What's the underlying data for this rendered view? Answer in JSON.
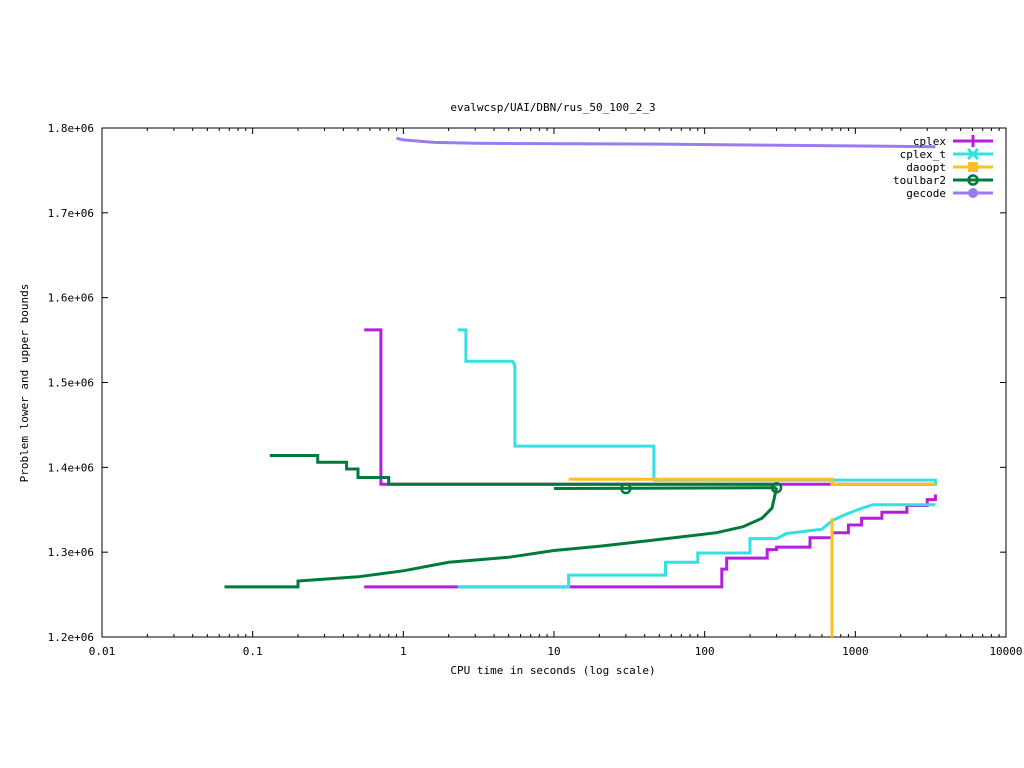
{
  "chart_data": {
    "type": "line",
    "title": "evalwcsp/UAI/DBN/rus_50_100_2_3",
    "xlabel": "CPU time in seconds (log scale)",
    "ylabel": "Problem lower and upper bounds",
    "xscale": "log",
    "xlim": [
      0.01,
      10000
    ],
    "ylim": [
      1200000,
      1800000
    ],
    "xticks": [
      {
        "value": 0.01,
        "label": "0.01"
      },
      {
        "value": 0.1,
        "label": "0.1"
      },
      {
        "value": 1,
        "label": "1"
      },
      {
        "value": 10,
        "label": "10"
      },
      {
        "value": 100,
        "label": "100"
      },
      {
        "value": 1000,
        "label": "1000"
      },
      {
        "value": 10000,
        "label": "10000"
      }
    ],
    "yticks": [
      {
        "value": 1200000,
        "label": "1.2e+06"
      },
      {
        "value": 1300000,
        "label": "1.3e+06"
      },
      {
        "value": 1400000,
        "label": "1.4e+06"
      },
      {
        "value": 1500000,
        "label": "1.5e+06"
      },
      {
        "value": 1600000,
        "label": "1.6e+06"
      },
      {
        "value": 1700000,
        "label": "1.7e+06"
      },
      {
        "value": 1800000,
        "label": "1.8e+06"
      }
    ],
    "legend_position": "top-right",
    "grid": false,
    "series": [
      {
        "name": "cplex",
        "color": "#b51fd9",
        "marker": "plus",
        "lines": [
          [
            [
              0.55,
              1562000
            ],
            [
              0.71,
              1562000
            ],
            [
              0.71,
              1380000
            ],
            [
              1.0,
              1380000
            ],
            [
              1.0,
              1380000
            ],
            [
              3400,
              1380000
            ]
          ],
          [
            [
              0.55,
              1259000
            ],
            [
              130,
              1259000
            ],
            [
              130,
              1280000
            ],
            [
              140,
              1280000
            ],
            [
              140,
              1293000
            ],
            [
              260,
              1293000
            ],
            [
              260,
              1303000
            ],
            [
              300,
              1303000
            ],
            [
              300,
              1306000
            ],
            [
              500,
              1306000
            ],
            [
              500,
              1317000
            ],
            [
              700,
              1317000
            ],
            [
              700,
              1323000
            ],
            [
              900,
              1323000
            ],
            [
              900,
              1332000
            ],
            [
              1100,
              1332000
            ],
            [
              1100,
              1340000
            ],
            [
              1500,
              1340000
            ],
            [
              1500,
              1347000
            ],
            [
              2200,
              1347000
            ],
            [
              2200,
              1355000
            ],
            [
              3000,
              1355000
            ],
            [
              3000,
              1362000
            ],
            [
              3400,
              1362000
            ],
            [
              3400,
              1368000
            ]
          ]
        ]
      },
      {
        "name": "cplex_t",
        "color": "#35e0e0",
        "marker": "cross",
        "lines": [
          [
            [
              2.3,
              1562000
            ],
            [
              2.6,
              1562000
            ],
            [
              2.6,
              1525000
            ],
            [
              5.3,
              1525000
            ],
            [
              5.5,
              1520000
            ],
            [
              5.5,
              1425000
            ],
            [
              46,
              1425000
            ],
            [
              46,
              1385000
            ],
            [
              3400,
              1385000
            ],
            [
              3400,
              1378000
            ]
          ],
          [
            [
              2.3,
              1259000
            ],
            [
              12.5,
              1259000
            ],
            [
              12.5,
              1273000
            ],
            [
              55,
              1273000
            ],
            [
              55,
              1288000
            ],
            [
              90,
              1288000
            ],
            [
              90,
              1299000
            ],
            [
              200,
              1299000
            ],
            [
              200,
              1316000
            ],
            [
              300,
              1316000
            ],
            [
              350,
              1322000
            ],
            [
              600,
              1327000
            ],
            [
              700,
              1337000
            ],
            [
              800,
              1342000
            ],
            [
              1000,
              1349000
            ],
            [
              1300,
              1356000
            ],
            [
              3400,
              1356000
            ]
          ]
        ]
      },
      {
        "name": "daoopt",
        "color": "#ffc020",
        "marker": "square",
        "lines": [
          [
            [
              12.5,
              1386000
            ],
            [
              700,
              1386000
            ],
            [
              700,
              1380000
            ],
            [
              3400,
              1380000
            ]
          ],
          [
            [
              700,
              1200000
            ],
            [
              700,
              1340000
            ]
          ]
        ]
      },
      {
        "name": "toulbar2",
        "color": "#007a3c",
        "marker": "circle",
        "points": [
          [
            30,
            1375000
          ],
          [
            300,
            1376000
          ]
        ],
        "lines": [
          [
            [
              0.13,
              1414000
            ],
            [
              0.27,
              1414000
            ],
            [
              0.27,
              1406000
            ],
            [
              0.42,
              1406000
            ],
            [
              0.42,
              1398000
            ],
            [
              0.5,
              1398000
            ],
            [
              0.5,
              1388000
            ],
            [
              0.8,
              1388000
            ],
            [
              0.8,
              1380000
            ],
            [
              300,
              1380000
            ]
          ],
          [
            [
              0.065,
              1259000
            ],
            [
              0.2,
              1259000
            ],
            [
              0.2,
              1266000
            ],
            [
              0.5,
              1271000
            ],
            [
              1.0,
              1278000
            ],
            [
              2,
              1288000
            ],
            [
              5,
              1294000
            ],
            [
              10,
              1302000
            ],
            [
              20,
              1307000
            ],
            [
              40,
              1313000
            ],
            [
              70,
              1318000
            ],
            [
              120,
              1323000
            ],
            [
              180,
              1330000
            ],
            [
              240,
              1340000
            ],
            [
              280,
              1352000
            ],
            [
              300,
              1376000
            ],
            [
              300,
              1376000
            ]
          ],
          [
            [
              10,
              1375000
            ],
            [
              300,
              1376000
            ]
          ]
        ]
      },
      {
        "name": "gecode",
        "color": "#9b7cf0",
        "marker": "circle",
        "lines": [
          [
            [
              0.9,
              1788000
            ],
            [
              1.0,
              1786000
            ],
            [
              1.6,
              1783000
            ],
            [
              3,
              1782000
            ],
            [
              50,
              1781000
            ],
            [
              3400,
              1778000
            ]
          ]
        ]
      }
    ]
  }
}
